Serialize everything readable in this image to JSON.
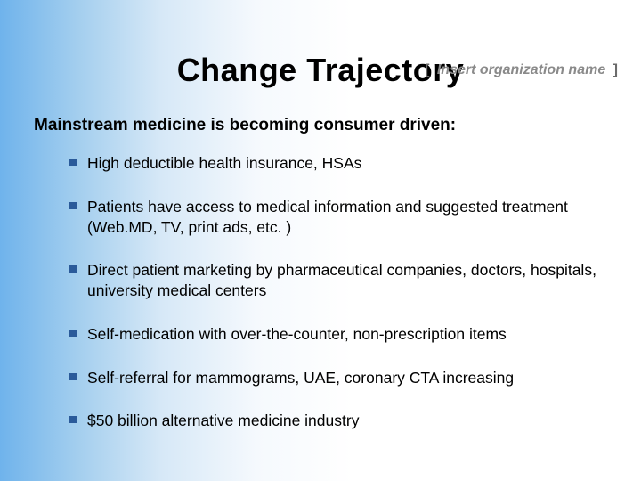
{
  "header": {
    "orgPlaceholder": "Insert organization name",
    "bracketLeft": "[",
    "bracketRight": "]"
  },
  "slide": {
    "title": "Change Trajectory",
    "subtitle": "Mainstream medicine is becoming consumer driven:",
    "bullets": [
      "High deductible health insurance, HSAs",
      "Patients have access to medical information and suggested treatment (Web.MD, TV, print ads, etc. )",
      "Direct patient marketing by pharmaceutical companies, doctors, hospitals, university medical centers",
      "Self-medication with over-the-counter, non-prescription items",
      "Self-referral for mammograms, UAE, coronary CTA increasing",
      "$50 billion alternative medicine industry"
    ]
  },
  "styling": {
    "background_gradient_start": "#6fb3ec",
    "background_gradient_end": "#ffffff",
    "bullet_marker_color": "#2a5a9a",
    "title_fontsize": 36,
    "subtitle_fontsize": 19,
    "body_fontsize": 17.5,
    "org_placeholder_color": "#8a8a8a"
  }
}
